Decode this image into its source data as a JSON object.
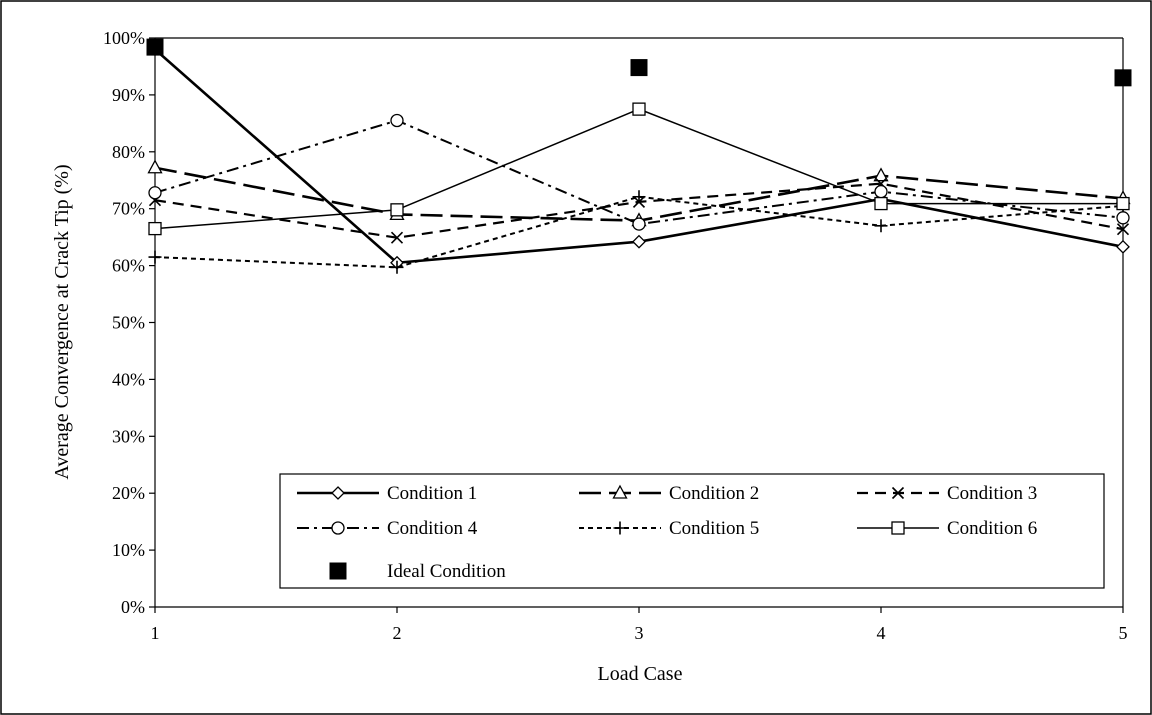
{
  "chart_data": {
    "type": "line",
    "title": "",
    "xlabel": "Load Case",
    "ylabel": "Average Convergence at Crack Tip (%)",
    "x": [
      1,
      2,
      3,
      4,
      5
    ],
    "x_ticks": [
      "1",
      "2",
      "3",
      "4",
      "5"
    ],
    "ylim": [
      0,
      100
    ],
    "y_ticks": [
      "0%",
      "10%",
      "20%",
      "30%",
      "40%",
      "50%",
      "60%",
      "70%",
      "80%",
      "90%",
      "100%"
    ],
    "y_unit": "%",
    "grid": false,
    "legend_position": "bottom-inside",
    "series": [
      {
        "name": "Condition 1",
        "marker": "diamond",
        "line": "solid-thick",
        "values": [
          98.0,
          60.5,
          64.2,
          71.7,
          63.3
        ]
      },
      {
        "name": "Condition 2",
        "marker": "triangle",
        "line": "long-dash",
        "values": [
          77.2,
          69.0,
          67.9,
          75.8,
          71.8
        ]
      },
      {
        "name": "Condition 3",
        "marker": "x",
        "line": "dash",
        "values": [
          71.5,
          64.9,
          71.2,
          74.4,
          66.4
        ]
      },
      {
        "name": "Condition 4",
        "marker": "circle",
        "line": "dash-dot",
        "values": [
          72.8,
          85.5,
          67.3,
          73.0,
          68.4
        ]
      },
      {
        "name": "Condition 5",
        "marker": "plus",
        "line": "short-dash",
        "values": [
          61.5,
          59.7,
          72.1,
          67.0,
          70.5
        ]
      },
      {
        "name": "Condition 6",
        "marker": "square-open",
        "line": "solid-thin",
        "values": [
          66.5,
          69.8,
          87.5,
          70.9,
          70.9
        ]
      },
      {
        "name": "Ideal Condition",
        "marker": "square-filled",
        "line": "none",
        "values": [
          98.4,
          null,
          94.8,
          null,
          93.0
        ]
      }
    ]
  }
}
